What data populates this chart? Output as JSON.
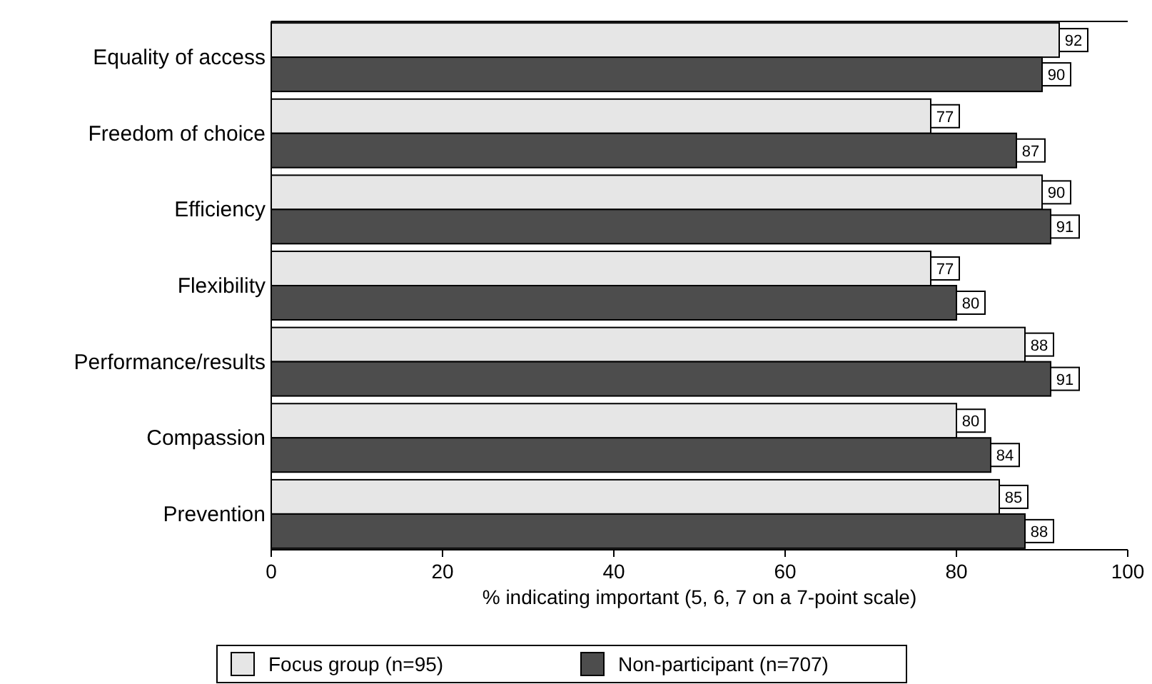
{
  "chart_data": {
    "type": "bar",
    "orientation": "horizontal",
    "xlabel": "% indicating important (5, 6, 7 on a 7-point scale)",
    "categories": [
      "Equality of access",
      "Freedom of choice",
      "Efficiency",
      "Flexibility",
      "Performance/results",
      "Compassion",
      "Prevention"
    ],
    "series": [
      {
        "name": "Focus group (n=95)",
        "color": "#e6e6e6",
        "values": [
          92,
          77,
          90,
          77,
          88,
          80,
          85
        ]
      },
      {
        "name": "Non-participant (n=707)",
        "color": "#4d4d4d",
        "values": [
          90,
          87,
          91,
          80,
          91,
          84,
          88
        ]
      }
    ],
    "xlim": [
      0,
      100
    ],
    "xticks": [
      0,
      20,
      40,
      60,
      80,
      100
    ],
    "data_labels": true,
    "legend": "bottom",
    "grid": false
  }
}
